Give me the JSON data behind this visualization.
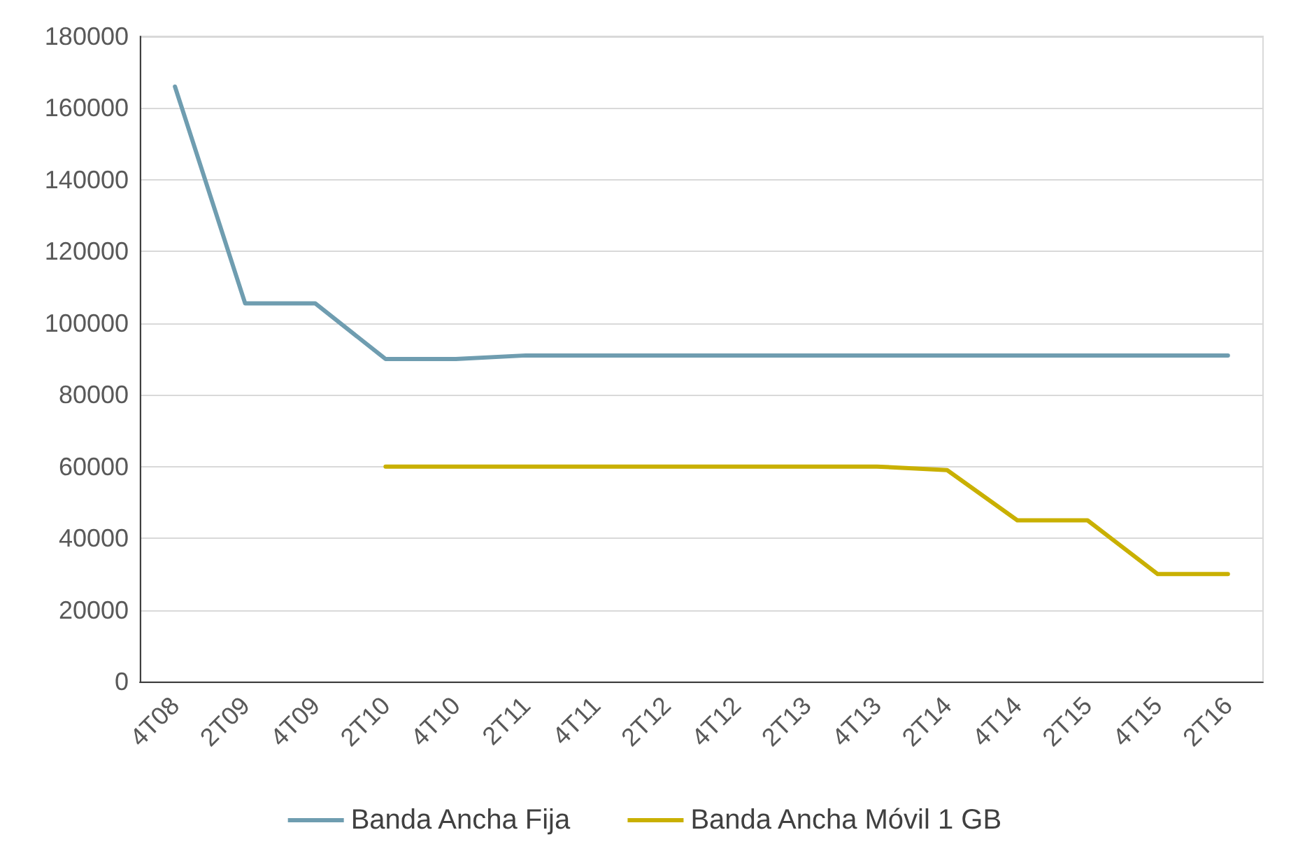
{
  "chart_data": {
    "type": "line",
    "categories": [
      "4T08",
      "2T09",
      "4T09",
      "2T10",
      "4T10",
      "2T11",
      "4T11",
      "2T12",
      "4T12",
      "2T13",
      "4T13",
      "2T14",
      "4T14",
      "2T15",
      "4T15",
      "2T16"
    ],
    "series": [
      {
        "name": "Banda Ancha Fija",
        "color": "#6f9db0",
        "values": [
          166000,
          105500,
          105500,
          90000,
          90000,
          91000,
          91000,
          91000,
          91000,
          91000,
          91000,
          91000,
          91000,
          91000,
          91000,
          91000
        ]
      },
      {
        "name": "Banda Ancha Móvil 1 GB",
        "color": "#c9b000",
        "values": [
          null,
          null,
          null,
          60000,
          60000,
          60000,
          60000,
          60000,
          60000,
          60000,
          60000,
          59000,
          45000,
          45000,
          30000,
          30000
        ]
      }
    ],
    "ylim": [
      0,
      180000
    ],
    "yticks": [
      0,
      20000,
      40000,
      60000,
      80000,
      100000,
      120000,
      140000,
      160000,
      180000
    ],
    "grid": "y",
    "legend": "bottom",
    "marker": "none",
    "line_style": "solid"
  }
}
